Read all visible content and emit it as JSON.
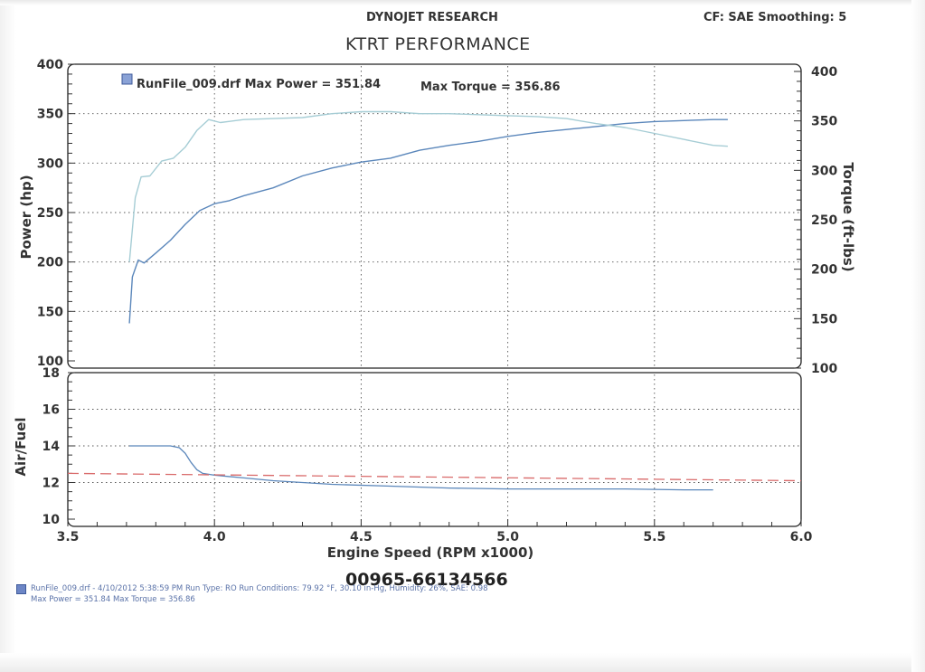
{
  "header": {
    "company": "DYNOJET RESEARCH",
    "cf_smoothing": "CF: SAE  Smoothing: 5",
    "title": "KTRT PERFORMANCE"
  },
  "serial": "00965-66134566",
  "footer": {
    "line1": "RunFile_009.drf - 4/10/2012 5:38:59 PM  Run Type: RO  Run Conditions: 79.92 °F, 30.10 in-Hg,  Humidity:  26%, SAE: 0.98",
    "line2": "Max Power = 351.84  Max Torque = 356.86"
  },
  "chart_data": [
    {
      "type": "line",
      "legend": "RunFile_009.drf Max Power = 351.84",
      "legend_torque": "Max Torque = 356.86",
      "ylabel": "Power (hp)",
      "ylabel_right": "Torque (ft-lbs)",
      "xlim": [
        3.5,
        6.0
      ],
      "ylim": [
        100,
        400
      ],
      "ylim_right": [
        100,
        400
      ],
      "yticks": [
        "100",
        "150",
        "200",
        "250",
        "300",
        "350",
        "400"
      ],
      "yticks_right": [
        "100",
        "150",
        "200",
        "250",
        "300",
        "350",
        "400"
      ],
      "grid": true,
      "colors": {
        "power": "#5b87bb",
        "torque": "#a6cdd5"
      },
      "series": [
        {
          "key": "power",
          "x": [
            3.71,
            3.72,
            3.74,
            3.76,
            3.8,
            3.85,
            3.9,
            3.95,
            4.0,
            4.05,
            4.1,
            4.2,
            4.3,
            4.4,
            4.5,
            4.6,
            4.7,
            4.8,
            4.9,
            5.0,
            5.1,
            5.2,
            5.3,
            5.4,
            5.5,
            5.6,
            5.7,
            5.75
          ],
          "values": [
            138,
            185,
            202,
            199,
            209,
            222,
            238,
            252,
            259,
            262,
            267,
            275,
            287,
            295,
            301,
            305,
            313,
            318,
            322,
            327,
            331,
            334,
            337,
            340,
            342,
            343,
            344,
            344
          ]
        },
        {
          "key": "torque",
          "x": [
            3.71,
            3.73,
            3.75,
            3.78,
            3.82,
            3.86,
            3.9,
            3.94,
            3.98,
            4.02,
            4.1,
            4.2,
            4.3,
            4.4,
            4.5,
            4.6,
            4.7,
            4.8,
            4.9,
            5.0,
            5.1,
            5.2,
            5.3,
            5.4,
            5.5,
            5.6,
            5.7,
            5.75
          ],
          "values": [
            200,
            265,
            286,
            287,
            302,
            305,
            316,
            333,
            344,
            341,
            344,
            345,
            346,
            350,
            352,
            352,
            350,
            350,
            349,
            348,
            347,
            345,
            340,
            336,
            330,
            324,
            318,
            317
          ]
        }
      ]
    },
    {
      "type": "line",
      "ylabel": "Air/Fuel",
      "xlabel": "Engine Speed (RPM x1000)",
      "xlim": [
        3.5,
        6.0
      ],
      "ylim": [
        10,
        18
      ],
      "xticks": [
        "3.5",
        "4.0",
        "4.5",
        "5.0",
        "5.5",
        "6.0"
      ],
      "yticks": [
        "10",
        "12",
        "14",
        "16",
        "18"
      ],
      "grid": true,
      "colors": {
        "afr": "#5b87bb",
        "target": "#d96a6a"
      },
      "series": [
        {
          "key": "afr",
          "x": [
            3.71,
            3.75,
            3.8,
            3.85,
            3.88,
            3.9,
            3.92,
            3.94,
            3.96,
            4.0,
            4.1,
            4.2,
            4.4,
            4.6,
            4.8,
            5.0,
            5.2,
            5.4,
            5.6,
            5.7
          ],
          "values": [
            14.0,
            14.0,
            14.0,
            14.0,
            13.9,
            13.6,
            13.1,
            12.7,
            12.5,
            12.4,
            12.25,
            12.1,
            11.9,
            11.8,
            11.7,
            11.65,
            11.65,
            11.65,
            11.6,
            11.6
          ]
        },
        {
          "key": "target",
          "x": [
            3.5,
            6.0
          ],
          "values": [
            12.5,
            12.1
          ]
        }
      ]
    }
  ]
}
